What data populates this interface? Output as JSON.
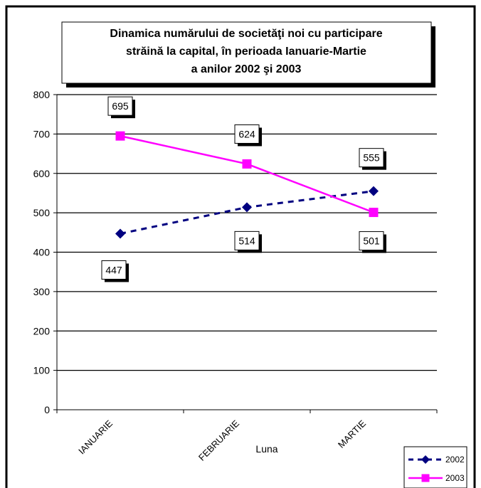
{
  "chart_data": {
    "type": "line",
    "title_lines": [
      "Dinamica numărului de societăţi noi cu participare",
      "străină la capital,  în perioada Ianuarie-Martie",
      "a anilor 2002 şi 2003"
    ],
    "xlabel": "Luna",
    "ylabel": "",
    "categories": [
      "IANUARIE",
      "FEBRUARIE",
      "MARTIE"
    ],
    "ylim": [
      0,
      800
    ],
    "yticks": [
      "0",
      "100",
      "200",
      "300",
      "400",
      "500",
      "600",
      "700",
      "800"
    ],
    "grid": true,
    "legend_position": "bottom-right",
    "series": [
      {
        "name": "2002",
        "values": [
          447,
          514,
          555
        ],
        "labels": [
          "447",
          "514",
          "555"
        ],
        "color": "#000080",
        "line_style": "dashed",
        "marker": "diamond",
        "label_side": "below-left"
      },
      {
        "name": "2003",
        "values": [
          695,
          624,
          501
        ],
        "labels": [
          "695",
          "624",
          "501"
        ],
        "color": "#ff00ff",
        "line_style": "solid",
        "marker": "square",
        "label_side": "above"
      }
    ]
  }
}
